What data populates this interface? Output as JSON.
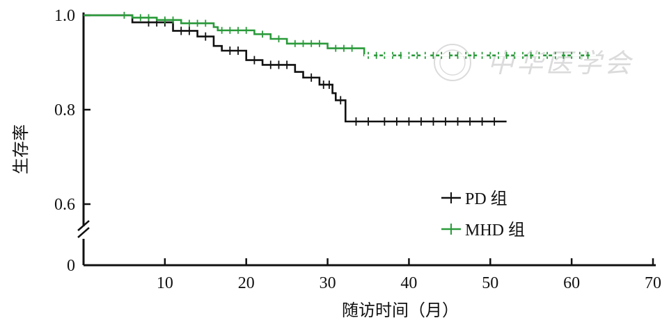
{
  "chart_data": {
    "type": "line",
    "subtype": "kaplan-meier step",
    "xlabel": "随访时间（月）",
    "ylabel": "生存率",
    "xlim": [
      0,
      70
    ],
    "ylim_display": [
      0.6,
      1.0
    ],
    "y_axis_break": true,
    "y_break_zero_label": "0",
    "x_ticks": [
      10,
      20,
      30,
      40,
      50,
      60,
      70
    ],
    "y_ticks": [
      {
        "value": 1.0,
        "label": "1.0"
      },
      {
        "value": 0.8,
        "label": "0.8"
      },
      {
        "value": 0.6,
        "label": "0.6"
      }
    ],
    "grid": false,
    "legend_position": "right-center",
    "watermark_text": "中华医学会",
    "series": [
      {
        "name": "PD 组",
        "color": "#111111",
        "line_style": "solid",
        "steps": [
          [
            0,
            1.0
          ],
          [
            6,
            0.985
          ],
          [
            11,
            0.967
          ],
          [
            14,
            0.955
          ],
          [
            16,
            0.935
          ],
          [
            17,
            0.925
          ],
          [
            20,
            0.905
          ],
          [
            22,
            0.895
          ],
          [
            26,
            0.88
          ],
          [
            27,
            0.868
          ],
          [
            29,
            0.853
          ],
          [
            30.6,
            0.835
          ],
          [
            31,
            0.82
          ],
          [
            32.2,
            0.775
          ],
          [
            52,
            0.775
          ]
        ],
        "censored": [
          8,
          9,
          10,
          12,
          13,
          15,
          18,
          19,
          21,
          23,
          24,
          25,
          28,
          29.5,
          30.2,
          31.6,
          33.5,
          35,
          37,
          38.5,
          40,
          41.5,
          43,
          44.5,
          46,
          47.5,
          49,
          50.5
        ]
      },
      {
        "name": "MHD 组",
        "color": "#2a9a3a",
        "line_style": "dash-dot",
        "steps": [
          [
            0,
            1.0
          ],
          [
            6,
            0.995
          ],
          [
            9,
            0.99
          ],
          [
            12,
            0.983
          ],
          [
            16,
            0.975
          ],
          [
            16.5,
            0.968
          ],
          [
            21,
            0.96
          ],
          [
            23,
            0.95
          ],
          [
            25,
            0.94
          ],
          [
            30,
            0.93
          ],
          [
            34.5,
            0.915
          ],
          [
            63,
            0.915
          ]
        ],
        "censored": [
          5,
          7,
          8,
          10,
          11,
          13,
          14,
          15,
          17,
          18,
          19,
          20,
          22,
          24,
          26,
          27,
          28,
          29,
          31,
          32,
          33,
          35,
          36,
          37,
          38,
          39,
          40,
          41,
          42,
          43,
          44,
          45,
          46,
          47,
          48,
          49,
          50,
          51,
          52,
          53,
          54,
          55,
          56,
          57,
          58,
          59,
          60,
          61,
          62
        ]
      }
    ]
  }
}
